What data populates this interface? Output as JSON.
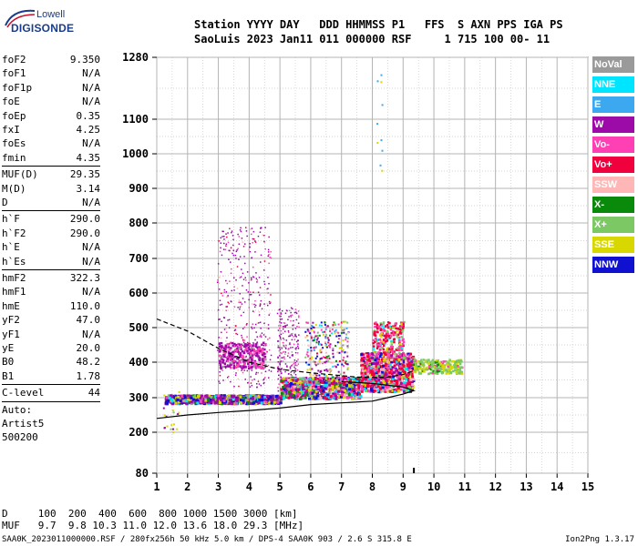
{
  "logo": {
    "line1": "Lowell",
    "line2": "DIGISONDE"
  },
  "header": {
    "line1": "Station YYYY DAY   DDD HHMMSS P1   FFS  S AXN PPS IGA PS",
    "line2": "SaoLuis 2023 Jan11 011 000000 RSF     1 715 100 00- 11"
  },
  "params": [
    {
      "label": "foF2",
      "value": "9.350"
    },
    {
      "label": "foF1",
      "value": "N/A"
    },
    {
      "label": "foF1p",
      "value": "N/A"
    },
    {
      "label": "foE",
      "value": "N/A"
    },
    {
      "label": "foEp",
      "value": "0.35"
    },
    {
      "label": "fxI",
      "value": "4.25"
    },
    {
      "label": "foEs",
      "value": "N/A"
    },
    {
      "label": "fmin",
      "value": "4.35"
    },
    {
      "sep": true
    },
    {
      "label": "MUF(D)",
      "value": "29.35"
    },
    {
      "label": "M(D)",
      "value": "3.14"
    },
    {
      "label": "D",
      "value": "N/A"
    },
    {
      "sep": true
    },
    {
      "label": "h`F",
      "value": "290.0"
    },
    {
      "label": "h`F2",
      "value": "290.0"
    },
    {
      "label": "h`E",
      "value": "N/A"
    },
    {
      "label": "h`Es",
      "value": "N/A"
    },
    {
      "sep": true
    },
    {
      "label": "hmF2",
      "value": "322.3"
    },
    {
      "label": "hmF1",
      "value": "N/A"
    },
    {
      "label": "hmE",
      "value": "110.0"
    },
    {
      "label": "yF2",
      "value": "47.0"
    },
    {
      "label": "yF1",
      "value": "N/A"
    },
    {
      "label": "yE",
      "value": "20.0"
    },
    {
      "label": "B0",
      "value": "48.2"
    },
    {
      "label": "B1",
      "value": "1.78"
    },
    {
      "sep": true
    },
    {
      "label": "C-level",
      "value": "44"
    },
    {
      "sep": true
    },
    {
      "label": "Auto:",
      "value": ""
    },
    {
      "label": "Artist5",
      "value": ""
    },
    {
      "label": "500200",
      "value": ""
    }
  ],
  "legend": [
    {
      "label": "NoVal",
      "color": "#9a9a9a"
    },
    {
      "label": "NNE",
      "color": "#00e5ff"
    },
    {
      "label": "E",
      "color": "#3ca8f0"
    },
    {
      "label": "W",
      "color": "#9c0aa8"
    },
    {
      "label": "Vo-",
      "color": "#ff3fb4"
    },
    {
      "label": "Vo+",
      "color": "#f0003c"
    },
    {
      "label": "SSW",
      "color": "#ffb6b6"
    },
    {
      "label": "X-",
      "color": "#0a8a0a"
    },
    {
      "label": "X+",
      "color": "#7cc864"
    },
    {
      "label": "SSE",
      "color": "#d8d800"
    },
    {
      "label": "NNW",
      "color": "#1010d0"
    }
  ],
  "bottom": {
    "line1": "D     100  200  400  600  800 1000 1500 3000 [km]",
    "line2": "MUF   9.7  9.8 10.3 11.0 12.0 13.6 18.0 29.3 [MHz]"
  },
  "footer": {
    "left": "SAA0K_2023011000000.RSF / 280fx256h 50 kHz 5.0 km / DPS-4 SAA0K 903 / 2.6 S 315.8 E",
    "right": "Ion2Png 1.3.17"
  },
  "chart_data": {
    "type": "scatter",
    "title": "",
    "xlabel": "",
    "ylabel": "",
    "xlim": [
      1,
      15
    ],
    "ylim": [
      80,
      1280
    ],
    "y_scale": "nonlinear (ionogram virtual height)",
    "x_ticks": [
      1,
      2,
      3,
      4,
      5,
      6,
      7,
      8,
      9,
      10,
      11,
      12,
      13,
      14,
      15
    ],
    "y_ticks": [
      80,
      200,
      300,
      400,
      500,
      600,
      700,
      800,
      900,
      1000,
      1100,
      1280
    ],
    "grid": true,
    "echo_clusters": [
      {
        "name": "F-trace low band",
        "x": [
          1.2,
          5.0
        ],
        "y": [
          285,
          310
        ],
        "dominant": "W"
      },
      {
        "name": "spread-F band 1",
        "x": [
          2.9,
          4.8
        ],
        "y": [
          330,
          800
        ],
        "dominant": "W"
      },
      {
        "name": "spread-F band 2",
        "x": [
          5.0,
          7.3
        ],
        "y": [
          300,
          560
        ],
        "dominant": "mixed"
      },
      {
        "name": "F2 trace",
        "x": [
          7.5,
          9.3
        ],
        "y": [
          310,
          520
        ],
        "dominant": "Vo+"
      },
      {
        "name": "X trace",
        "x": [
          9.3,
          10.9
        ],
        "y": [
          370,
          410
        ],
        "dominant": "X+"
      }
    ],
    "profile_curves": [
      {
        "name": "lower profile",
        "x": [
          1.0,
          2.0,
          3.0,
          4.0,
          5.0,
          6.0,
          7.0,
          8.0,
          8.5,
          9.0,
          9.35,
          9.0,
          8.0,
          7.0
        ],
        "y": [
          240,
          250,
          257,
          263,
          270,
          280,
          285,
          290,
          300,
          310,
          320,
          330,
          340,
          345
        ]
      },
      {
        "name": "upper profile",
        "x": [
          1.0,
          2.0,
          3.0,
          4.0,
          5.0,
          6.0,
          7.0,
          7.5,
          8.0,
          8.5,
          9.0,
          9.3
        ],
        "y": [
          525,
          490,
          440,
          400,
          380,
          370,
          362,
          358,
          357,
          358,
          365,
          375
        ]
      }
    ],
    "marker_x": 9.35
  }
}
